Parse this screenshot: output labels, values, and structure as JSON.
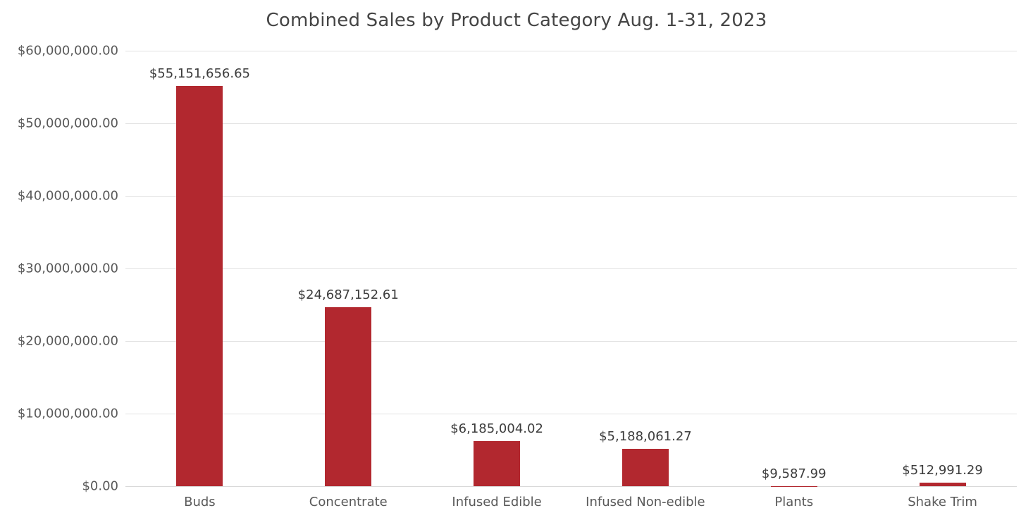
{
  "chart_data": {
    "type": "bar",
    "title": "Combined Sales by Product Category Aug. 1-31, 2023",
    "categories": [
      "Buds",
      "Concentrate",
      "Infused Edible",
      "Infused Non-edible",
      "Plants",
      "Shake Trim"
    ],
    "values": [
      55151656.65,
      24687152.61,
      6185004.02,
      5188061.27,
      9587.99,
      512991.29
    ],
    "value_labels": [
      "$55,151,656.65",
      "$24,687,152.61",
      "$6,185,004.02",
      "$5,188,061.27",
      "$9,587.99",
      "$512,991.29"
    ],
    "y_ticks": [
      {
        "value": 0,
        "label": "$0.00"
      },
      {
        "value": 10000000,
        "label": "$10,000,000.00"
      },
      {
        "value": 20000000,
        "label": "$20,000,000.00"
      },
      {
        "value": 30000000,
        "label": "$30,000,000.00"
      },
      {
        "value": 40000000,
        "label": "$40,000,000.00"
      },
      {
        "value": 50000000,
        "label": "$50,000,000.00"
      },
      {
        "value": 60000000,
        "label": "$60,000,000.00"
      }
    ],
    "ylim": [
      0,
      60000000
    ],
    "xlabel": "",
    "ylabel": "",
    "grid": true,
    "legend": false,
    "colors": {
      "bar": "#b2282f",
      "title_text": "#454545",
      "axis_text": "#595959",
      "value_label_text": "#3c3c3c",
      "gridline": "#e2e2e2",
      "background": "#ffffff"
    }
  }
}
